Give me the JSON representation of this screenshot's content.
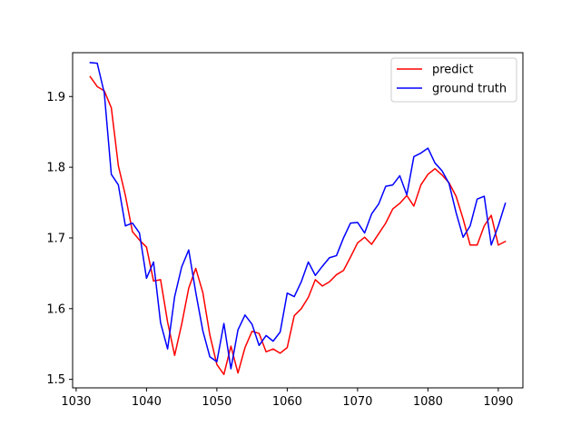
{
  "chart_data": {
    "type": "line",
    "title": "",
    "xlabel": "",
    "ylabel": "",
    "xlim": [
      1029.5,
      1093.5
    ],
    "ylim": [
      1.488,
      1.962
    ],
    "xticks": [
      1030,
      1040,
      1050,
      1060,
      1070,
      1080,
      1090
    ],
    "yticks": [
      1.5,
      1.6,
      1.7,
      1.8,
      1.9
    ],
    "xtick_labels": [
      "1030",
      "1040",
      "1050",
      "1060",
      "1070",
      "1080",
      "1090"
    ],
    "ytick_labels": [
      "1.5",
      "1.6",
      "1.7",
      "1.8",
      "1.9"
    ],
    "grid": false,
    "legend_position": "upper right",
    "x": [
      1032,
      1033,
      1034,
      1035,
      1036,
      1037,
      1038,
      1039,
      1040,
      1041,
      1042,
      1043,
      1044,
      1045,
      1046,
      1047,
      1048,
      1049,
      1050,
      1051,
      1052,
      1053,
      1054,
      1055,
      1056,
      1057,
      1058,
      1059,
      1060,
      1061,
      1062,
      1063,
      1064,
      1065,
      1066,
      1067,
      1068,
      1069,
      1070,
      1071,
      1072,
      1073,
      1074,
      1075,
      1076,
      1077,
      1078,
      1079,
      1080,
      1081,
      1082,
      1083,
      1084,
      1085,
      1086,
      1087,
      1088,
      1089,
      1090,
      1091
    ],
    "series": [
      {
        "name": "predict",
        "color": "#ff0000",
        "values": [
          1.928,
          1.914,
          1.908,
          1.884,
          1.802,
          1.76,
          1.709,
          1.697,
          1.687,
          1.639,
          1.641,
          1.581,
          1.534,
          1.578,
          1.629,
          1.657,
          1.623,
          1.563,
          1.521,
          1.507,
          1.547,
          1.509,
          1.545,
          1.568,
          1.565,
          1.539,
          1.543,
          1.537,
          1.545,
          1.59,
          1.6,
          1.616,
          1.641,
          1.632,
          1.638,
          1.648,
          1.654,
          1.673,
          1.693,
          1.701,
          1.691,
          1.706,
          1.721,
          1.741,
          1.749,
          1.76,
          1.745,
          1.775,
          1.79,
          1.798,
          1.789,
          1.778,
          1.759,
          1.727,
          1.69,
          1.69,
          1.717,
          1.732,
          1.69,
          1.695
        ]
      },
      {
        "name": "ground truth",
        "color": "#0000ff",
        "values": [
          1.948,
          1.947,
          1.905,
          1.79,
          1.775,
          1.717,
          1.721,
          1.707,
          1.643,
          1.666,
          1.58,
          1.543,
          1.617,
          1.659,
          1.683,
          1.623,
          1.569,
          1.532,
          1.525,
          1.579,
          1.515,
          1.57,
          1.591,
          1.578,
          1.548,
          1.562,
          1.554,
          1.567,
          1.622,
          1.617,
          1.638,
          1.666,
          1.647,
          1.66,
          1.672,
          1.675,
          1.7,
          1.721,
          1.722,
          1.707,
          1.734,
          1.748,
          1.773,
          1.775,
          1.788,
          1.761,
          1.815,
          1.82,
          1.827,
          1.806,
          1.795,
          1.777,
          1.736,
          1.701,
          1.717,
          1.755,
          1.759,
          1.69,
          1.717,
          1.749
        ]
      }
    ]
  }
}
